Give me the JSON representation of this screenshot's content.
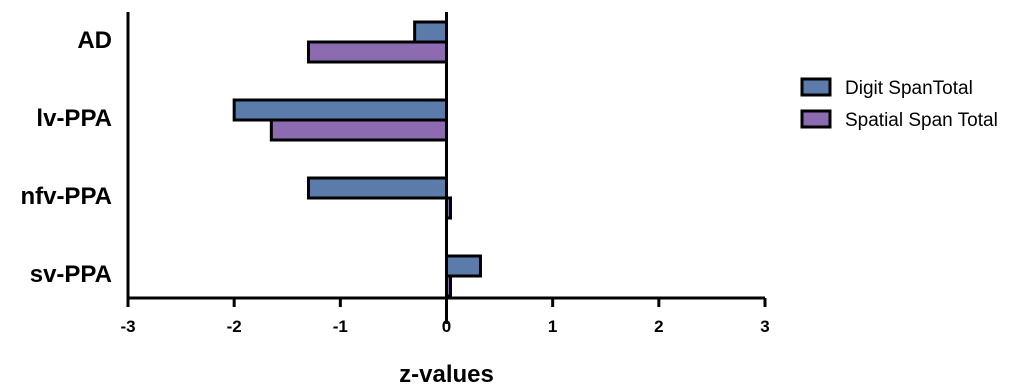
{
  "chart_data": {
    "type": "bar",
    "orientation": "horizontal",
    "categories": [
      "AD",
      "lv-PPA",
      "nfv-PPA",
      "sv-PPA"
    ],
    "series": [
      {
        "name": "Digit SpanTotal",
        "color": "#5b7bab",
        "values": [
          -0.3,
          -2.0,
          -1.3,
          0.32
        ]
      },
      {
        "name": "Spatial Span Total",
        "color": "#8c6bb0",
        "values": [
          -1.3,
          -1.65,
          0.03,
          0.03
        ]
      }
    ],
    "xlabel": "z-values",
    "xlim": [
      -3,
      3
    ],
    "x_ticks": [
      "-3",
      "-2",
      "-1",
      "0",
      "1",
      "2",
      "3"
    ],
    "grid": false,
    "legend_position": "right"
  }
}
